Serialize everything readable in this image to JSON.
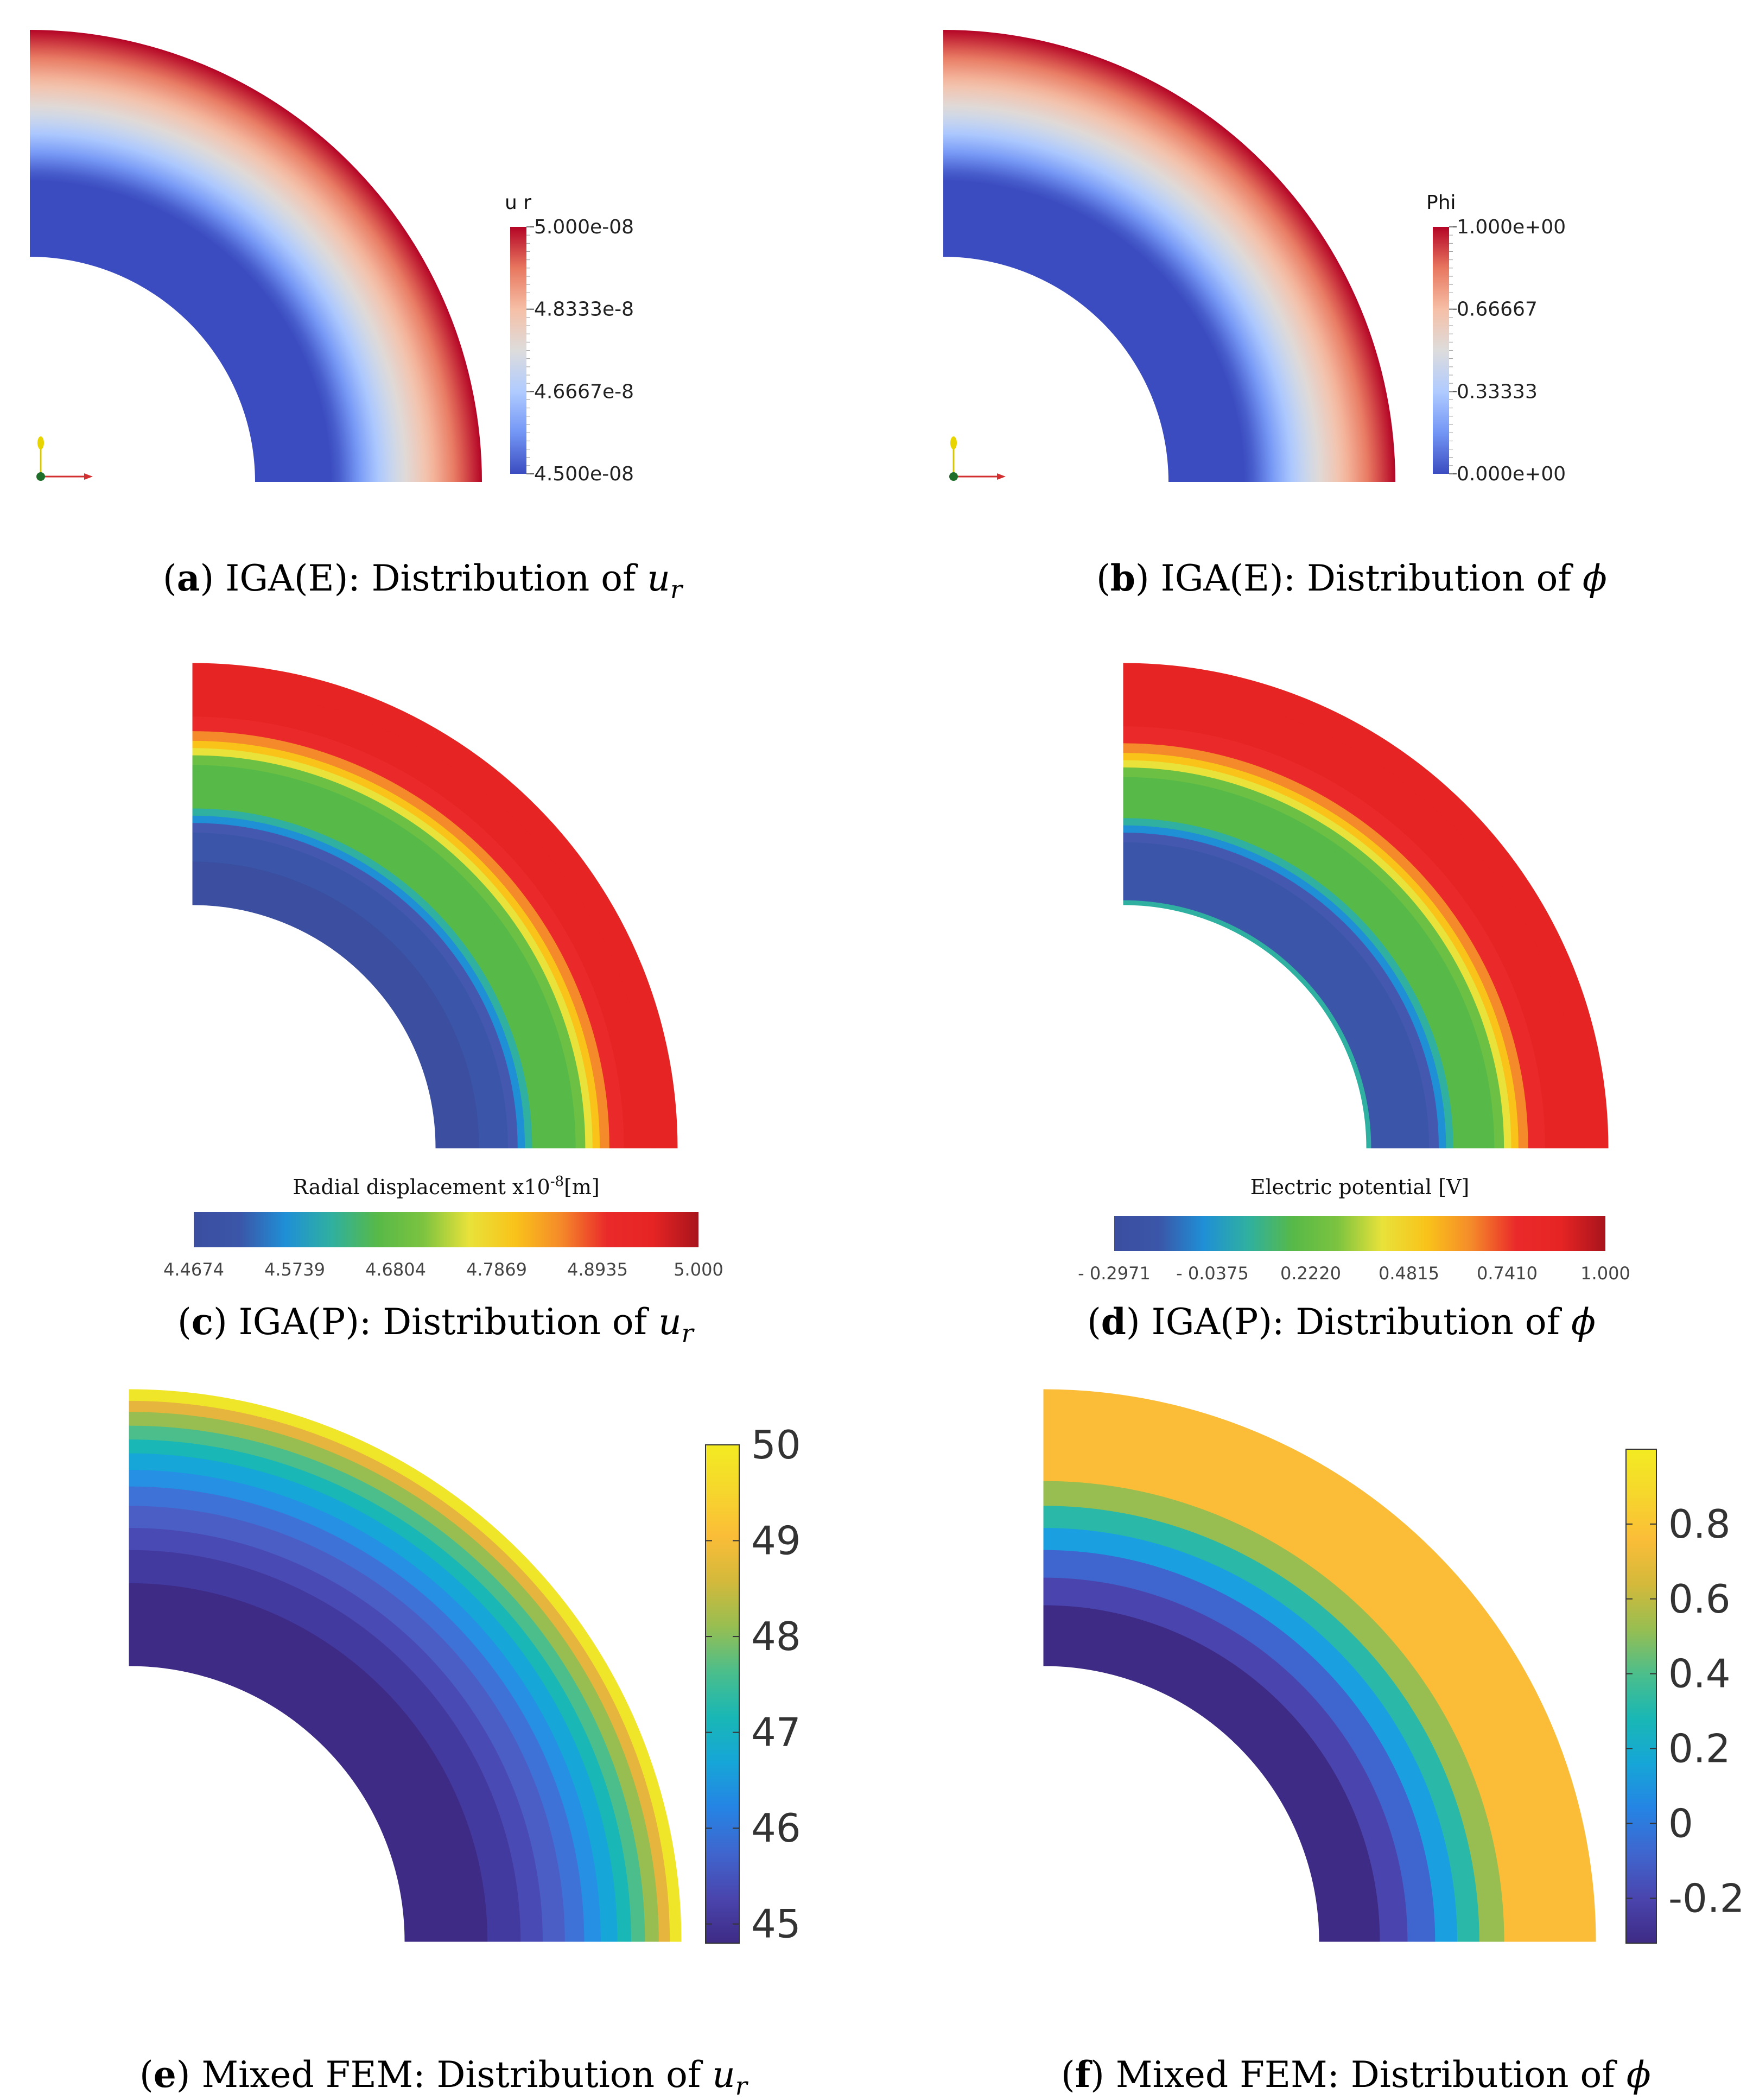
{
  "colors": {
    "coolwarm": [
      "#3b4cc0",
      "#7396f5",
      "#b0cbff",
      "#dddcdc",
      "#f6bfa6",
      "#e8775f",
      "#b40426"
    ],
    "jet_like": [
      "#3b4ea0",
      "#3b56a8",
      "#1f8fd6",
      "#2fb0a0",
      "#57b948",
      "#7cc340",
      "#e8e23a",
      "#f9c31a",
      "#f58a2a",
      "#ea2a2a",
      "#e62424",
      "#a8141c"
    ],
    "parula": [
      "#3e2b85",
      "#4a45ae",
      "#3f66ce",
      "#2584e4",
      "#16a6d7",
      "#19b7b5",
      "#4cbe8b",
      "#98be51",
      "#d4b93b",
      "#fbbd38",
      "#f6d72c",
      "#f3eb22"
    ]
  },
  "chart_data": [
    {
      "id": "a",
      "type": "heatmap",
      "field": "radial displacement u_r",
      "caption": {
        "letter": "a",
        "pre": "(",
        "post": ") IGA(E): Distribution of ",
        "var": "u",
        "sub": "r"
      },
      "colorbar": {
        "title": "u r",
        "ticks": [
          "5.000e-08",
          "4.8333e-8",
          "4.6667e-8",
          "4.500e-08"
        ],
        "range": [
          4.5e-08,
          5e-08
        ],
        "colormap": "coolwarm"
      },
      "profile": {
        "stops": [
          0,
          0.35,
          0.62,
          1.0
        ],
        "values": [
          0,
          0,
          0.45,
          1.0
        ]
      },
      "axes_triad": true
    },
    {
      "id": "b",
      "type": "heatmap",
      "field": "electric potential phi",
      "caption": {
        "letter": "b",
        "pre": "(",
        "post": ") IGA(E): Distribution of ",
        "var": "ϕ",
        "sub": ""
      },
      "colorbar": {
        "title": "Phi",
        "ticks": [
          "1.000e+00",
          "0.66667",
          "0.33333",
          "0.000e+00"
        ],
        "range": [
          0,
          1
        ],
        "colormap": "coolwarm"
      },
      "profile": {
        "stops": [
          0,
          0.35,
          0.62,
          1.0
        ],
        "values": [
          0,
          0,
          0.45,
          1.0
        ]
      },
      "axes_triad": true
    },
    {
      "id": "c",
      "type": "heatmap",
      "field": "radial displacement u_r",
      "caption": {
        "letter": "c",
        "pre": "(",
        "post": ") IGA(P): Distribution of ",
        "var": "u",
        "sub": "r"
      },
      "colorbar": {
        "title": "Radial displacement x10",
        "title_sup": "-8",
        "title_unit": "[m]",
        "ticks": [
          "4.4674",
          "4.5739",
          "4.6804",
          "4.7869",
          "4.8935",
          "5.000"
        ],
        "range": [
          4.4674,
          5.0
        ],
        "colormap": "jet_like"
      },
      "bands": [
        "#3b4ea0",
        "#3b56a8",
        "#4458b0",
        "#1f8fd6",
        "#2fb0a0",
        "#57b948",
        "#57b948",
        "#6cc044",
        "#e8e23a",
        "#f9c31a",
        "#f58a2a",
        "#ea2a2a",
        "#e62424",
        "#e62424",
        "#e62424"
      ],
      "band_stops": [
        0,
        0.18,
        0.3,
        0.34,
        0.37,
        0.4,
        0.55,
        0.58,
        0.62,
        0.65,
        0.68,
        0.72,
        0.78,
        0.9,
        1.0
      ]
    },
    {
      "id": "d",
      "type": "heatmap",
      "field": "electric potential phi",
      "caption": {
        "letter": "d",
        "pre": "(",
        "post": ") IGA(P): Distribution of ",
        "var": "ϕ",
        "sub": ""
      },
      "colorbar": {
        "title": "Electric potential [V]",
        "ticks": [
          "- 0.2971",
          "- 0.0375",
          "0.2220",
          "0.4815",
          "0.7410",
          "1.000"
        ],
        "range": [
          -0.2971,
          1.0
        ],
        "colormap": "jet_like"
      },
      "bands": [
        "#2fb0a0",
        "#3b56a8",
        "#4458b0",
        "#1f8fd6",
        "#2fb0a0",
        "#57b948",
        "#57b948",
        "#6cc044",
        "#e8e23a",
        "#f9c31a",
        "#f58a2a",
        "#ea2a2a",
        "#e62424",
        "#e62424",
        "#e62424"
      ],
      "band_stops": [
        0,
        0.02,
        0.26,
        0.3,
        0.33,
        0.36,
        0.5,
        0.53,
        0.57,
        0.6,
        0.63,
        0.67,
        0.74,
        0.9,
        1.0
      ]
    },
    {
      "id": "e",
      "type": "heatmap",
      "field": "radial displacement u_r",
      "caption": {
        "letter": "e",
        "pre": "(",
        "post": ") Mixed FEM: Distribution of ",
        "var": "u",
        "sub": "r"
      },
      "colorbar": {
        "ticks": [
          "50",
          "49",
          "48",
          "47",
          "46",
          "45"
        ],
        "tick_values": [
          50,
          49,
          48,
          47,
          46,
          45
        ],
        "range": [
          44.8,
          50.0
        ],
        "colormap": "parula"
      },
      "bands": [
        "#3e2b85",
        "#433aa0",
        "#4a4ab4",
        "#4a5ec6",
        "#3f72d6",
        "#2590e4",
        "#16a6d7",
        "#19b7b5",
        "#4cbe8b",
        "#98be51",
        "#e6b53d",
        "#f0e629"
      ],
      "band_stops": [
        0,
        0.3,
        0.42,
        0.5,
        0.58,
        0.65,
        0.71,
        0.77,
        0.82,
        0.87,
        0.92,
        0.96,
        1.0
      ]
    },
    {
      "id": "f",
      "type": "heatmap",
      "field": "electric potential phi",
      "caption": {
        "letter": "f",
        "pre": "(",
        "post": ") Mixed FEM: Distribution of ",
        "var": "ϕ",
        "sub": ""
      },
      "colorbar": {
        "ticks": [
          "0.8",
          "0.6",
          "0.4",
          "0.2",
          "0",
          "-0.2"
        ],
        "tick_values": [
          0.8,
          0.6,
          0.4,
          0.2,
          0,
          -0.2
        ],
        "range": [
          -0.32,
          1.0
        ],
        "colormap": "parula"
      },
      "bands": [
        "#3e2b85",
        "#4a45ae",
        "#3f66ce",
        "#1aa0e0",
        "#2ab8a8",
        "#98be51",
        "#fbbd38"
      ],
      "band_stops": [
        0,
        0.22,
        0.32,
        0.42,
        0.5,
        0.58,
        0.67,
        1.0
      ]
    }
  ]
}
